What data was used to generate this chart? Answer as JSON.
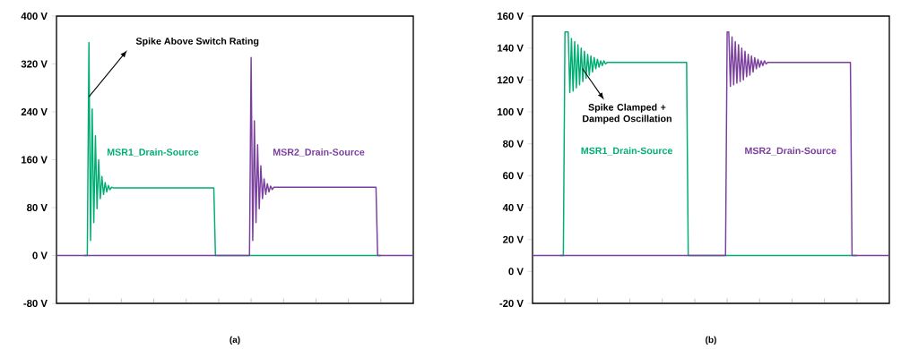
{
  "chart_data": [
    {
      "type": "line",
      "xlabel": "(a)",
      "legend": false,
      "marker": "none",
      "line_style": "solid",
      "grid": false,
      "categories": [
        null,
        null,
        null,
        null,
        null,
        null,
        null,
        null,
        null,
        null,
        null,
        null,
        null,
        null,
        null,
        null,
        null,
        null,
        null,
        null,
        null,
        null,
        null,
        null,
        null,
        null,
        null,
        null,
        null,
        null,
        null,
        null,
        null,
        null,
        null,
        null,
        null,
        null,
        null,
        null,
        null,
        null,
        null,
        null,
        null,
        null,
        null,
        null,
        null,
        null,
        null,
        null,
        null,
        null,
        null,
        null,
        null,
        null,
        null,
        null,
        null,
        null,
        null,
        null,
        null,
        null,
        null,
        null,
        null,
        null,
        null,
        null,
        null,
        null,
        null,
        null,
        null,
        null,
        null,
        null,
        null,
        null,
        null,
        null,
        null,
        null,
        null,
        null,
        null,
        null,
        null,
        null,
        null,
        null,
        null,
        null,
        null,
        null,
        null,
        null,
        null,
        null,
        null,
        null,
        null,
        null,
        null,
        null,
        null,
        null,
        null,
        null,
        null,
        null,
        null,
        null,
        null,
        null,
        null,
        null,
        null,
        null,
        null,
        null,
        null,
        null,
        null,
        null,
        null,
        null,
        null,
        null,
        null,
        null,
        null,
        null,
        null,
        null,
        null,
        null,
        null,
        null,
        null,
        null,
        null,
        null,
        null,
        null,
        null,
        null,
        null,
        null,
        null,
        null,
        null,
        null,
        null,
        null,
        null,
        null,
        null,
        null,
        null,
        null,
        null,
        null,
        null,
        null,
        null,
        null,
        null,
        null,
        null,
        null,
        null,
        null,
        null,
        null,
        null,
        null,
        null,
        null,
        null,
        null,
        null,
        null,
        null,
        null,
        null,
        null,
        null,
        null,
        null,
        null,
        null,
        null,
        null,
        null,
        null,
        null,
        null,
        null,
        null,
        null,
        null,
        null,
        null,
        null,
        null,
        null,
        null,
        null,
        null,
        null,
        null,
        null,
        null,
        null,
        null,
        null,
        null
      ],
      "ylim": [
        -80,
        400
      ],
      "yticks": [
        {
          "value": -80,
          "label": "-80 V"
        },
        {
          "value": 0,
          "label": "0 V"
        },
        {
          "value": 80,
          "label": "80 V"
        },
        {
          "value": 160,
          "label": "160 V"
        },
        {
          "value": 240,
          "label": "240 V"
        },
        {
          "value": 320,
          "label": "320 V"
        },
        {
          "value": 400,
          "label": "400 V"
        }
      ],
      "annotations": [
        "Spike Above Switch Rating"
      ],
      "series": [
        {
          "name": "MSR1_Drain-Source",
          "color": "#00ad72",
          "values": [
            null,
            null,
            null,
            null,
            null,
            null,
            null,
            null,
            null,
            null,
            null,
            null,
            null,
            null,
            null,
            null,
            null,
            0,
            0,
            0,
            356,
            25,
            245,
            55,
            200,
            78,
            160,
            95,
            132,
            102,
            122,
            106,
            117,
            110,
            114,
            113,
            113,
            113,
            113,
            113,
            113,
            113,
            113,
            113,
            113,
            113,
            113,
            113,
            113,
            113,
            113,
            113,
            113,
            113,
            113,
            113,
            113,
            113,
            113,
            113,
            113,
            113,
            113,
            113,
            113,
            113,
            113,
            113,
            113,
            113,
            113,
            113,
            113,
            113,
            113,
            113,
            113,
            113,
            113,
            113,
            113,
            113,
            113,
            113,
            113,
            113,
            113,
            113,
            113,
            113,
            113,
            113,
            113,
            113,
            113,
            113,
            113,
            113,
            0,
            0,
            0,
            0,
            0,
            0,
            0,
            0,
            0,
            0,
            0,
            0,
            0,
            0,
            0,
            0,
            0,
            0,
            0,
            0,
            0,
            0,
            0,
            0,
            0,
            0,
            0,
            0,
            0,
            0,
            0,
            0,
            0,
            0,
            0,
            0,
            0,
            0,
            0,
            0,
            0,
            0,
            0,
            0,
            0,
            0,
            0,
            0,
            0,
            0,
            0,
            0,
            0,
            0,
            0,
            0,
            0,
            0,
            0,
            0,
            0,
            0,
            0,
            0,
            0,
            0,
            0,
            0,
            0,
            0,
            0,
            0,
            0,
            0,
            0,
            0,
            0,
            0,
            0,
            0,
            0,
            0,
            0,
            0,
            0,
            0,
            0,
            0,
            0,
            0,
            0,
            0,
            0,
            0,
            0,
            0,
            0,
            0,
            0,
            0,
            0,
            0,
            0,
            null,
            null,
            null,
            null,
            null,
            null,
            null,
            null,
            null,
            null,
            null,
            null,
            null,
            null,
            null,
            null,
            null,
            null,
            null,
            null
          ]
        },
        {
          "name": "MSR2_Drain-Source",
          "color": "#7b3f9e",
          "values": [
            0,
            0,
            0,
            0,
            0,
            0,
            0,
            0,
            0,
            0,
            0,
            0,
            0,
            0,
            0,
            0,
            0,
            0,
            0,
            0,
            0,
            0,
            0,
            0,
            0,
            0,
            0,
            0,
            0,
            0,
            0,
            0,
            0,
            0,
            0,
            0,
            0,
            0,
            0,
            0,
            0,
            0,
            0,
            0,
            0,
            0,
            0,
            0,
            0,
            0,
            0,
            0,
            0,
            0,
            0,
            0,
            0,
            0,
            0,
            0,
            0,
            0,
            0,
            0,
            0,
            0,
            0,
            0,
            0,
            0,
            0,
            0,
            0,
            0,
            0,
            0,
            0,
            0,
            0,
            0,
            0,
            0,
            0,
            0,
            0,
            0,
            0,
            0,
            0,
            0,
            0,
            0,
            0,
            0,
            0,
            0,
            0,
            0,
            0,
            0,
            0,
            0,
            0,
            0,
            0,
            0,
            0,
            0,
            0,
            0,
            0,
            0,
            0,
            0,
            0,
            0,
            0,
            0,
            0,
            0,
            331,
            25,
            225,
            55,
            185,
            78,
            150,
            95,
            128,
            102,
            120,
            106,
            116,
            110,
            114,
            114,
            114,
            114,
            114,
            114,
            114,
            114,
            114,
            114,
            114,
            114,
            114,
            114,
            114,
            114,
            114,
            114,
            114,
            114,
            114,
            114,
            114,
            114,
            114,
            114,
            114,
            114,
            114,
            114,
            114,
            114,
            114,
            114,
            114,
            114,
            114,
            114,
            114,
            114,
            114,
            114,
            114,
            114,
            114,
            114,
            114,
            114,
            114,
            114,
            114,
            114,
            114,
            114,
            114,
            114,
            114,
            114,
            114,
            114,
            114,
            114,
            114,
            114,
            0,
            0,
            0,
            0,
            0,
            0,
            0,
            0,
            0,
            0,
            0,
            0,
            0,
            0,
            0,
            0,
            0,
            0,
            0,
            0,
            0,
            0,
            0
          ]
        }
      ]
    },
    {
      "type": "line",
      "xlabel": "(b)",
      "legend": false,
      "marker": "none",
      "line_style": "solid",
      "grid": false,
      "categories": [
        null,
        null,
        null,
        null,
        null,
        null,
        null,
        null,
        null,
        null,
        null,
        null,
        null,
        null,
        null,
        null,
        null,
        null,
        null,
        null,
        null,
        null,
        null,
        null,
        null,
        null,
        null,
        null,
        null,
        null,
        null,
        null,
        null,
        null,
        null,
        null,
        null,
        null,
        null,
        null,
        null,
        null,
        null,
        null,
        null,
        null,
        null,
        null,
        null,
        null,
        null,
        null,
        null,
        null,
        null,
        null,
        null,
        null,
        null,
        null,
        null,
        null,
        null,
        null,
        null,
        null,
        null,
        null,
        null,
        null,
        null,
        null,
        null,
        null,
        null,
        null,
        null,
        null,
        null,
        null,
        null,
        null,
        null,
        null,
        null,
        null,
        null,
        null,
        null,
        null,
        null,
        null,
        null,
        null,
        null,
        null,
        null,
        null,
        null,
        null,
        null,
        null,
        null,
        null,
        null,
        null,
        null,
        null,
        null,
        null,
        null,
        null,
        null,
        null,
        null,
        null,
        null,
        null,
        null,
        null,
        null,
        null,
        null,
        null,
        null,
        null,
        null,
        null,
        null,
        null,
        null,
        null,
        null,
        null,
        null,
        null,
        null,
        null,
        null,
        null,
        null,
        null,
        null,
        null,
        null,
        null,
        null,
        null,
        null,
        null,
        null,
        null,
        null,
        null,
        null,
        null,
        null,
        null,
        null,
        null,
        null,
        null,
        null,
        null,
        null,
        null,
        null,
        null,
        null,
        null,
        null,
        null,
        null,
        null,
        null,
        null,
        null,
        null,
        null,
        null,
        null,
        null,
        null,
        null,
        null,
        null,
        null,
        null,
        null,
        null,
        null,
        null,
        null,
        null,
        null,
        null,
        null,
        null,
        null,
        null,
        null,
        null,
        null,
        null,
        null,
        null,
        null,
        null,
        null,
        null,
        null,
        null,
        null,
        null,
        null,
        null,
        null,
        null,
        null,
        null,
        null
      ],
      "ylim": [
        -20,
        160
      ],
      "yticks": [
        {
          "value": -20,
          "label": "-20 V"
        },
        {
          "value": 0,
          "label": "0 V"
        },
        {
          "value": 20,
          "label": "20 V"
        },
        {
          "value": 40,
          "label": "40 V"
        },
        {
          "value": 60,
          "label": "60 V"
        },
        {
          "value": 80,
          "label": "80 V"
        },
        {
          "value": 100,
          "label": "100 V"
        },
        {
          "value": 120,
          "label": "120 V"
        },
        {
          "value": 140,
          "label": "140 V"
        },
        {
          "value": 160,
          "label": "160 V"
        }
      ],
      "annotations": [
        "Spike Clamped + Damped Oscillation"
      ],
      "series": [
        {
          "name": "MSR1_Drain-Source",
          "color": "#00ad72",
          "values": [
            null,
            null,
            null,
            null,
            null,
            null,
            null,
            null,
            null,
            null,
            null,
            null,
            null,
            null,
            null,
            null,
            null,
            10,
            10,
            10,
            150,
            150,
            150,
            112,
            146,
            113,
            144,
            115,
            142,
            117,
            140,
            119,
            138,
            121,
            136,
            123,
            135,
            125,
            134,
            127,
            133,
            128,
            132,
            129,
            132,
            130,
            131,
            131,
            131,
            131,
            131,
            131,
            131,
            131,
            131,
            131,
            131,
            131,
            131,
            131,
            131,
            131,
            131,
            131,
            131,
            131,
            131,
            131,
            131,
            131,
            131,
            131,
            131,
            131,
            131,
            131,
            131,
            131,
            131,
            131,
            131,
            131,
            131,
            131,
            131,
            131,
            131,
            131,
            131,
            131,
            131,
            131,
            131,
            131,
            131,
            131,
            10,
            10,
            10,
            10,
            10,
            10,
            10,
            10,
            10,
            10,
            10,
            10,
            10,
            10,
            10,
            10,
            10,
            10,
            10,
            10,
            10,
            10,
            10,
            10,
            10,
            10,
            10,
            10,
            10,
            10,
            10,
            10,
            10,
            10,
            10,
            10,
            10,
            10,
            10,
            10,
            10,
            10,
            10,
            10,
            10,
            10,
            10,
            10,
            10,
            10,
            10,
            10,
            10,
            10,
            10,
            10,
            10,
            10,
            10,
            10,
            10,
            10,
            10,
            10,
            10,
            10,
            10,
            10,
            10,
            10,
            10,
            10,
            10,
            10,
            10,
            10,
            10,
            10,
            10,
            10,
            10,
            10,
            10,
            10,
            10,
            10,
            10,
            10,
            10,
            10,
            10,
            10,
            10,
            10,
            10,
            10,
            10,
            10,
            10,
            10,
            10,
            10,
            10,
            10,
            10,
            null,
            null,
            null,
            null,
            null,
            null,
            null,
            null,
            null,
            null,
            null,
            null,
            null,
            null,
            null,
            null,
            null,
            null,
            null,
            null
          ]
        },
        {
          "name": "MSR2_Drain-Source",
          "color": "#7b3f9e",
          "values": [
            10,
            10,
            10,
            10,
            10,
            10,
            10,
            10,
            10,
            10,
            10,
            10,
            10,
            10,
            10,
            10,
            10,
            10,
            10,
            10,
            10,
            10,
            10,
            10,
            10,
            10,
            10,
            10,
            10,
            10,
            10,
            10,
            10,
            10,
            10,
            10,
            10,
            10,
            10,
            10,
            10,
            10,
            10,
            10,
            10,
            10,
            10,
            10,
            10,
            10,
            10,
            10,
            10,
            10,
            10,
            10,
            10,
            10,
            10,
            10,
            10,
            10,
            10,
            10,
            10,
            10,
            10,
            10,
            10,
            10,
            10,
            10,
            10,
            10,
            10,
            10,
            10,
            10,
            10,
            10,
            10,
            10,
            10,
            10,
            10,
            10,
            10,
            10,
            10,
            10,
            10,
            10,
            10,
            10,
            10,
            10,
            10,
            10,
            10,
            10,
            10,
            10,
            10,
            10,
            10,
            10,
            10,
            10,
            10,
            10,
            10,
            10,
            10,
            10,
            10,
            10,
            10,
            10,
            10,
            10,
            150,
            150,
            116,
            147,
            117,
            144,
            118,
            142,
            119,
            140,
            120,
            138,
            122,
            136,
            123,
            135,
            125,
            134,
            127,
            133,
            128,
            132,
            129,
            132,
            130,
            131,
            131,
            131,
            131,
            131,
            131,
            131,
            131,
            131,
            131,
            131,
            131,
            131,
            131,
            131,
            131,
            131,
            131,
            131,
            131,
            131,
            131,
            131,
            131,
            131,
            131,
            131,
            131,
            131,
            131,
            131,
            131,
            131,
            131,
            131,
            131,
            131,
            131,
            131,
            131,
            131,
            131,
            131,
            131,
            131,
            131,
            131,
            131,
            131,
            131,
            131,
            131,
            10,
            10,
            10,
            10,
            10,
            10,
            10,
            10,
            10,
            10,
            10,
            10,
            10,
            10,
            10,
            10,
            10,
            10,
            10,
            10,
            10,
            10,
            10,
            10
          ]
        }
      ]
    }
  ]
}
